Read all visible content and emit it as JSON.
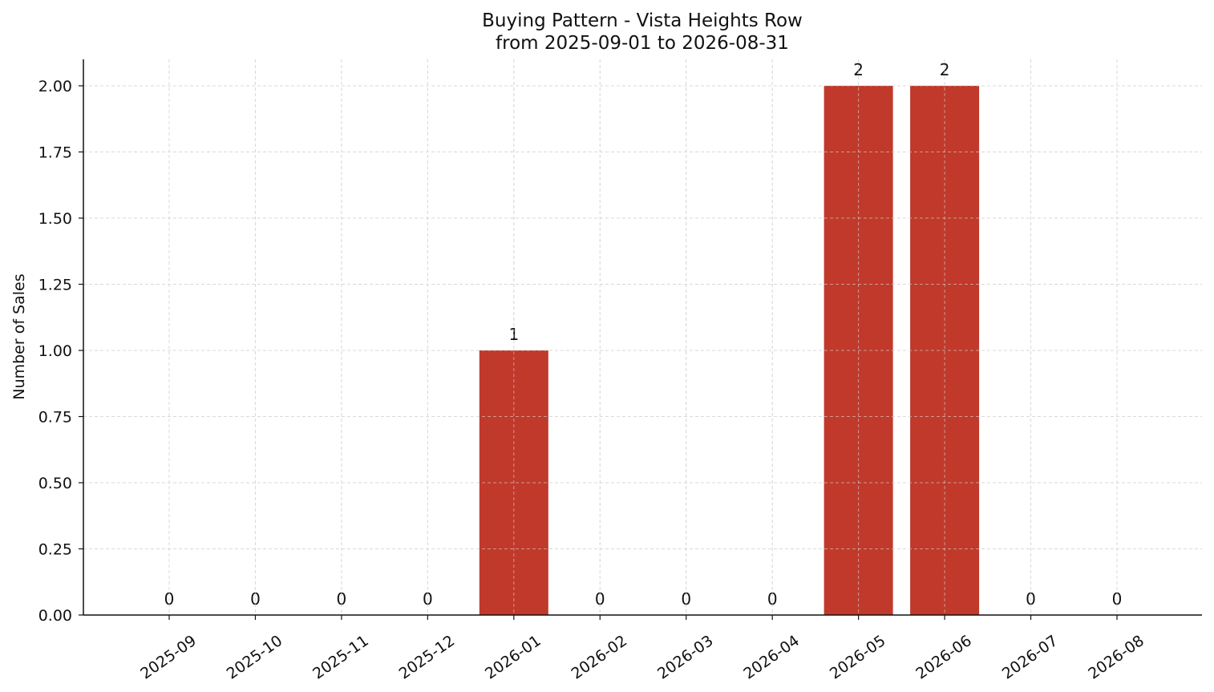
{
  "chart_data": {
    "type": "bar",
    "title": "Buying Pattern - Vista Heights Row",
    "subtitle": "from 2025-09-01 to 2026-08-31",
    "xlabel": "",
    "ylabel": "Number of Sales",
    "categories": [
      "2025-09",
      "2025-10",
      "2025-11",
      "2025-12",
      "2026-01",
      "2026-02",
      "2026-03",
      "2026-04",
      "2026-05",
      "2026-06",
      "2026-07",
      "2026-08"
    ],
    "values": [
      0,
      0,
      0,
      0,
      1,
      0,
      0,
      0,
      2,
      2,
      0,
      0
    ],
    "data_labels": [
      "0",
      "0",
      "0",
      "0",
      "1",
      "0",
      "0",
      "0",
      "2",
      "2",
      "0",
      "0"
    ],
    "yticks": [
      "0.00",
      "0.25",
      "0.50",
      "0.75",
      "1.00",
      "1.25",
      "1.50",
      "1.75",
      "2.00"
    ],
    "ylim": [
      0,
      2.1
    ],
    "grid": true,
    "legend": "none",
    "colors": {
      "bar": "#c0392b",
      "grid": "#d9d9d9",
      "axis": "#111111"
    }
  }
}
